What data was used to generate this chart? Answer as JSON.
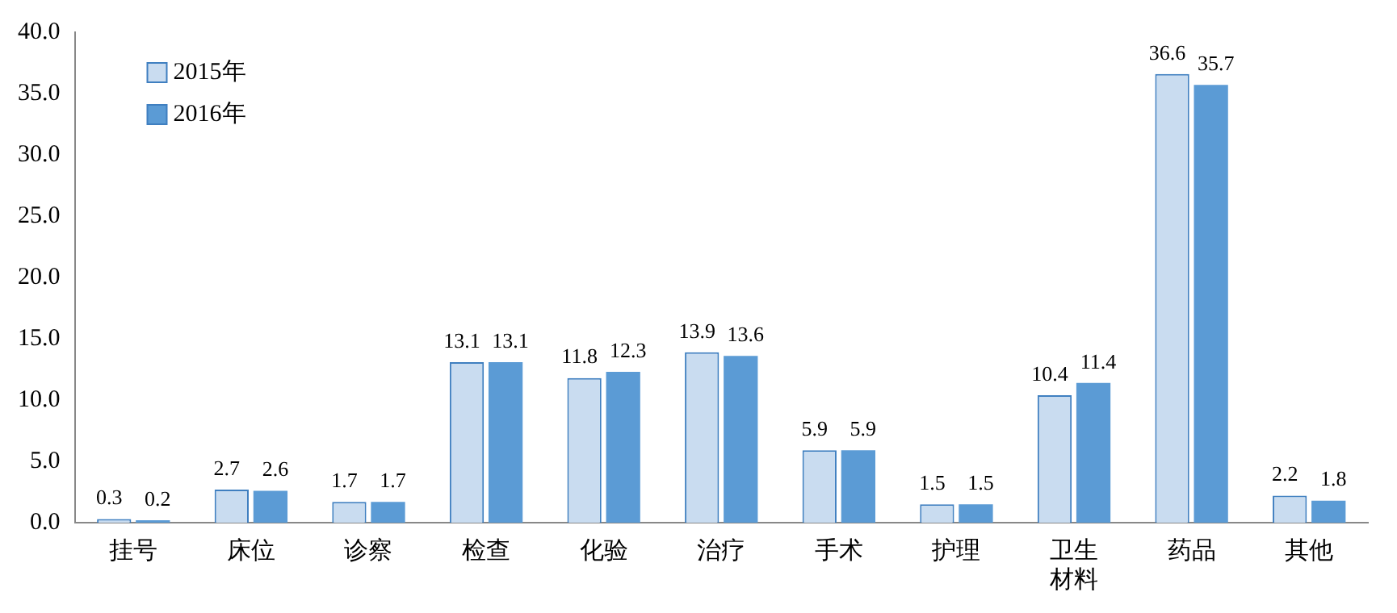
{
  "chart_data": {
    "type": "bar",
    "categories": [
      "挂号",
      "床位",
      "诊察",
      "检查",
      "化验",
      "治疗",
      "手术",
      "护理",
      "卫生材料",
      "药品",
      "其他"
    ],
    "series": [
      {
        "name": "2015年",
        "color": "#c9dcf0",
        "values": [
          0.3,
          2.7,
          1.7,
          13.1,
          11.8,
          13.9,
          5.9,
          1.5,
          10.4,
          36.6,
          2.2
        ]
      },
      {
        "name": "2016年",
        "color": "#5b9bd5",
        "values": [
          0.2,
          2.6,
          1.7,
          13.1,
          12.3,
          13.6,
          5.9,
          1.5,
          11.4,
          35.7,
          1.8
        ]
      }
    ],
    "ylim": [
      0,
      40
    ],
    "yticks": [
      {
        "value": 0,
        "label": "0.0"
      },
      {
        "value": 5,
        "label": "5.0"
      },
      {
        "value": 10,
        "label": "10.0"
      },
      {
        "value": 15,
        "label": "15.0"
      },
      {
        "value": 20,
        "label": "20.0"
      },
      {
        "value": 25,
        "label": "25.0"
      },
      {
        "value": 30,
        "label": "30.0"
      },
      {
        "value": 35,
        "label": "35.0"
      },
      {
        "value": 40,
        "label": "40.0"
      }
    ],
    "grid": false,
    "legend": "top left",
    "data_labels": true
  }
}
